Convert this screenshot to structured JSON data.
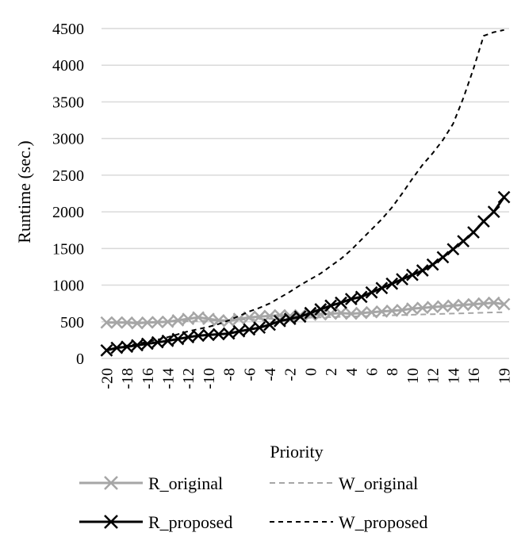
{
  "chart_data": {
    "type": "line",
    "ylabel": "Runtime (sec.)",
    "xlabel": "Priority",
    "ylim": [
      0,
      4500
    ],
    "yticks": [
      0,
      500,
      1000,
      1500,
      2000,
      2500,
      3000,
      3500,
      4000,
      4500
    ],
    "xticks": [
      -20,
      -18,
      -16,
      -14,
      -12,
      -10,
      -8,
      -6,
      -4,
      -2,
      0,
      2,
      4,
      6,
      8,
      10,
      12,
      14,
      16,
      19
    ],
    "x": [
      -20,
      -19,
      -18,
      -17,
      -16,
      -15,
      -14,
      -13,
      -12,
      -11,
      -10,
      -9,
      -8,
      -7,
      -6,
      -5,
      -4,
      -3,
      -2,
      -1,
      0,
      1,
      2,
      3,
      4,
      5,
      6,
      7,
      8,
      9,
      10,
      11,
      12,
      13,
      14,
      15,
      16,
      17,
      18,
      19
    ],
    "grid": true,
    "legend_position": "bottom",
    "series": [
      {
        "name": "R_original",
        "color": "#a6a6a6",
        "style": "solid-x",
        "values": [
          490,
          490,
          490,
          480,
          490,
          495,
          500,
          520,
          540,
          560,
          540,
          520,
          510,
          540,
          560,
          570,
          580,
          590,
          580,
          590,
          595,
          600,
          610,
          620,
          610,
          620,
          630,
          640,
          650,
          660,
          680,
          690,
          700,
          710,
          720,
          730,
          740,
          750,
          760,
          740
        ]
      },
      {
        "name": "W_original",
        "color": "#a6a6a6",
        "style": "dashed",
        "values": [
          490,
          492,
          494,
          496,
          498,
          500,
          502,
          505,
          508,
          512,
          516,
          520,
          524,
          528,
          532,
          536,
          540,
          544,
          548,
          552,
          556,
          560,
          564,
          568,
          572,
          576,
          580,
          584,
          588,
          592,
          596,
          600,
          604,
          608,
          612,
          616,
          620,
          624,
          628,
          630
        ]
      },
      {
        "name": "R_proposed",
        "color": "#000000",
        "style": "solid-x",
        "values": [
          110,
          145,
          160,
          180,
          200,
          220,
          240,
          265,
          290,
          310,
          320,
          330,
          340,
          370,
          395,
          420,
          460,
          510,
          540,
          570,
          620,
          670,
          720,
          760,
          810,
          840,
          900,
          960,
          1020,
          1080,
          1140,
          1200,
          1280,
          1380,
          1490,
          1600,
          1720,
          1870,
          2000,
          2200
        ]
      },
      {
        "name": "W_proposed",
        "color": "#000000",
        "style": "dashed",
        "values": [
          120,
          150,
          175,
          200,
          225,
          255,
          290,
          330,
          370,
          400,
          430,
          470,
          520,
          580,
          640,
          690,
          750,
          830,
          910,
          1000,
          1080,
          1160,
          1260,
          1360,
          1480,
          1620,
          1760,
          1900,
          2060,
          2250,
          2450,
          2640,
          2800,
          2980,
          3200,
          3550,
          3950,
          4400,
          4450,
          4480
        ]
      }
    ]
  }
}
